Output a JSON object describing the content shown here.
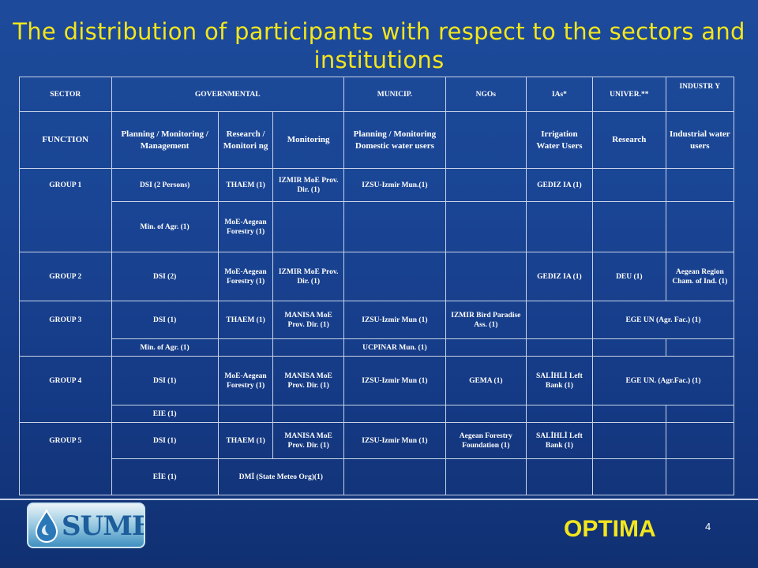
{
  "title": "The distribution of participants with respect to the sectors and institutions",
  "header": {
    "sector": "SECTOR",
    "governmental": "GOVERNMENTAL",
    "municip": "MUNICIP.",
    "ngos": "NGOs",
    "ias": "IAs*",
    "univer": "UNIVER.**",
    "industry": "INDUSTR Y"
  },
  "function_row": {
    "label": "FUNCTION",
    "planning_management": "Planning / Monitoring / Management",
    "research": "Research / Monitori ng",
    "monitoring": "Monitoring",
    "planning_domestic": "Planning / Monitoring Domestic water users",
    "ngos": "",
    "irrigation": "Irrigation Water Users",
    "univ_research": "Research",
    "industrial": "Industrial water users"
  },
  "group1": {
    "label": "GROUP 1",
    "r1": {
      "c1": "DSI (2 Persons)",
      "c2": "THAEM (1)",
      "c3": "IZMIR MoE Prov. Dir. (1)",
      "c4": "IZSU-Izmir Mun.(1)",
      "c5": "",
      "c6": "GEDIZ IA (1)",
      "c7": "",
      "c8": ""
    },
    "r2": {
      "c1": "Min. of Agr. (1)",
      "c2": "MoE-Aegean Forestry (1)"
    }
  },
  "group2": {
    "label": "GROUP 2",
    "r1": {
      "c1": "DSI (2)",
      "c2": "MoE-Aegean Forestry (1)",
      "c3": "IZMIR MoE Prov. Dir. (1)",
      "c4": "",
      "c5": "",
      "c6": "GEDIZ IA (1)",
      "c7": "DEU (1)",
      "c8": "Aegean Region Cham. of Ind. (1)"
    }
  },
  "group3": {
    "label": "GROUP 3",
    "r1": {
      "c1": "DSI (1)",
      "c2": "THAEM (1)",
      "c3": "MANISA MoE Prov. Dir. (1)",
      "c4": "IZSU-Izmir Mun (1)",
      "c5": "IZMIR Bird Paradise Ass. (1)",
      "c6": "",
      "c7": "EGE UN (Agr. Fac.) (1)"
    },
    "r2": {
      "c1": "Min. of Agr. (1)",
      "c4": "UCPINAR Mun. (1)"
    }
  },
  "group4": {
    "label": "GROUP 4",
    "r1": {
      "c1": "DSI (1)",
      "c2": "MoE-Aegean Forestry (1)",
      "c3": "MANISA MoE Prov. Dir. (1)",
      "c4": "IZSU-Izmir Mun (1)",
      "c5": "GEMA (1)",
      "c6": "SALİHLİ Left Bank (1)",
      "c7": "EGE UN. (Agr.Fac.) (1)"
    },
    "r2": {
      "c1": "EIE (1)"
    }
  },
  "group5": {
    "label": "GROUP 5",
    "r1": {
      "c1": "DSI (1)",
      "c2": "THAEM (1)",
      "c3": "MANISA MoE Prov. Dir. (1)",
      "c4": "IZSU-Izmir Mun (1)",
      "c5": "Aegean Forestry Foundation (1)",
      "c6": "SALİHLİ Left Bank (1)"
    },
    "r2": {
      "c1": "EİE (1)",
      "c23": "DMİ (State Meteo Org)(1)"
    }
  },
  "footer": {
    "logo_text": "SUMER",
    "brand": "OPTIMA",
    "page_number": "4"
  },
  "colors": {
    "title": "#f3e61c",
    "background": "#1a4595",
    "text": "#ffffff",
    "grid": "#c9d3e6"
  },
  "icons": {
    "logo": "water-drop-icon"
  }
}
